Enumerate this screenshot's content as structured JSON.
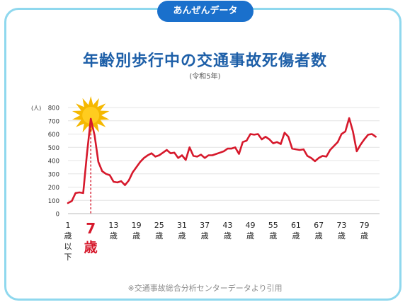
{
  "header": {
    "badge": "あんぜんデータ"
  },
  "title": "年齢別歩行中の交通事故死傷者数",
  "subtitle": "(令和5年)",
  "source": "※交通事故総合分析センターデータより引用",
  "colors": {
    "line": "#d6182b",
    "title": "#1d5fa8",
    "badge": "#1a70cc",
    "border": "#8fd8ee",
    "burst": "#f5b800",
    "highlight": "#d6182b",
    "grid": "#e4e4e4"
  },
  "chart_data": {
    "type": "line",
    "ylabel": "(人)",
    "ylim": [
      0,
      800
    ],
    "yticks": [
      0,
      100,
      200,
      300,
      400,
      500,
      600,
      700,
      800
    ],
    "xlim": [
      1,
      83
    ],
    "x_tick_labels": [
      {
        "x": 1,
        "lines": [
          "1",
          "歳",
          "以",
          "下"
        ]
      },
      {
        "x": 13,
        "lines": [
          "13",
          "歳"
        ]
      },
      {
        "x": 19,
        "lines": [
          "19",
          "歳"
        ]
      },
      {
        "x": 25,
        "lines": [
          "25",
          "歳"
        ]
      },
      {
        "x": 31,
        "lines": [
          "31",
          "歳"
        ]
      },
      {
        "x": 37,
        "lines": [
          "37",
          "歳"
        ]
      },
      {
        "x": 43,
        "lines": [
          "43",
          "歳"
        ]
      },
      {
        "x": 49,
        "lines": [
          "49",
          "歳"
        ]
      },
      {
        "x": 55,
        "lines": [
          "55",
          "歳"
        ]
      },
      {
        "x": 61,
        "lines": [
          "61",
          "歳"
        ]
      },
      {
        "x": 67,
        "lines": [
          "67",
          "歳"
        ]
      },
      {
        "x": 73,
        "lines": [
          "73",
          "歳"
        ]
      },
      {
        "x": 79,
        "lines": [
          "79",
          "歳"
        ]
      }
    ],
    "highlight": {
      "x": 7,
      "value": 715,
      "number": "7",
      "unit": "歳"
    },
    "grid": true,
    "series": [
      {
        "x": [
          1,
          2,
          3,
          4,
          5,
          6,
          7,
          8,
          9,
          10,
          11,
          12,
          13,
          14,
          15,
          16,
          17,
          18,
          19,
          20,
          21,
          22,
          23,
          24,
          25,
          26,
          27,
          28,
          29,
          30,
          31,
          32,
          33,
          34,
          35,
          36,
          37,
          38,
          39,
          40,
          41,
          42,
          43,
          44,
          45,
          46,
          47,
          48,
          49,
          50,
          51,
          52,
          53,
          54,
          55,
          56,
          57,
          58,
          59,
          60,
          61,
          62,
          63,
          64,
          65,
          66,
          67,
          68,
          69,
          70,
          71,
          72,
          73,
          74,
          75,
          76,
          77,
          78,
          79,
          80,
          81,
          82
        ],
        "values": [
          80,
          95,
          155,
          160,
          155,
          450,
          715,
          590,
          390,
          320,
          300,
          290,
          240,
          235,
          245,
          215,
          250,
          310,
          350,
          390,
          420,
          440,
          455,
          430,
          440,
          460,
          480,
          455,
          460,
          420,
          440,
          405,
          500,
          435,
          430,
          445,
          420,
          440,
          440,
          450,
          460,
          470,
          490,
          490,
          500,
          450,
          540,
          550,
          600,
          595,
          600,
          560,
          580,
          560,
          530,
          540,
          525,
          610,
          580,
          490,
          485,
          480,
          485,
          435,
          420,
          395,
          420,
          435,
          430,
          480,
          510,
          540,
          600,
          620,
          720,
          620,
          470,
          520,
          560,
          595,
          600,
          580
        ]
      }
    ]
  }
}
